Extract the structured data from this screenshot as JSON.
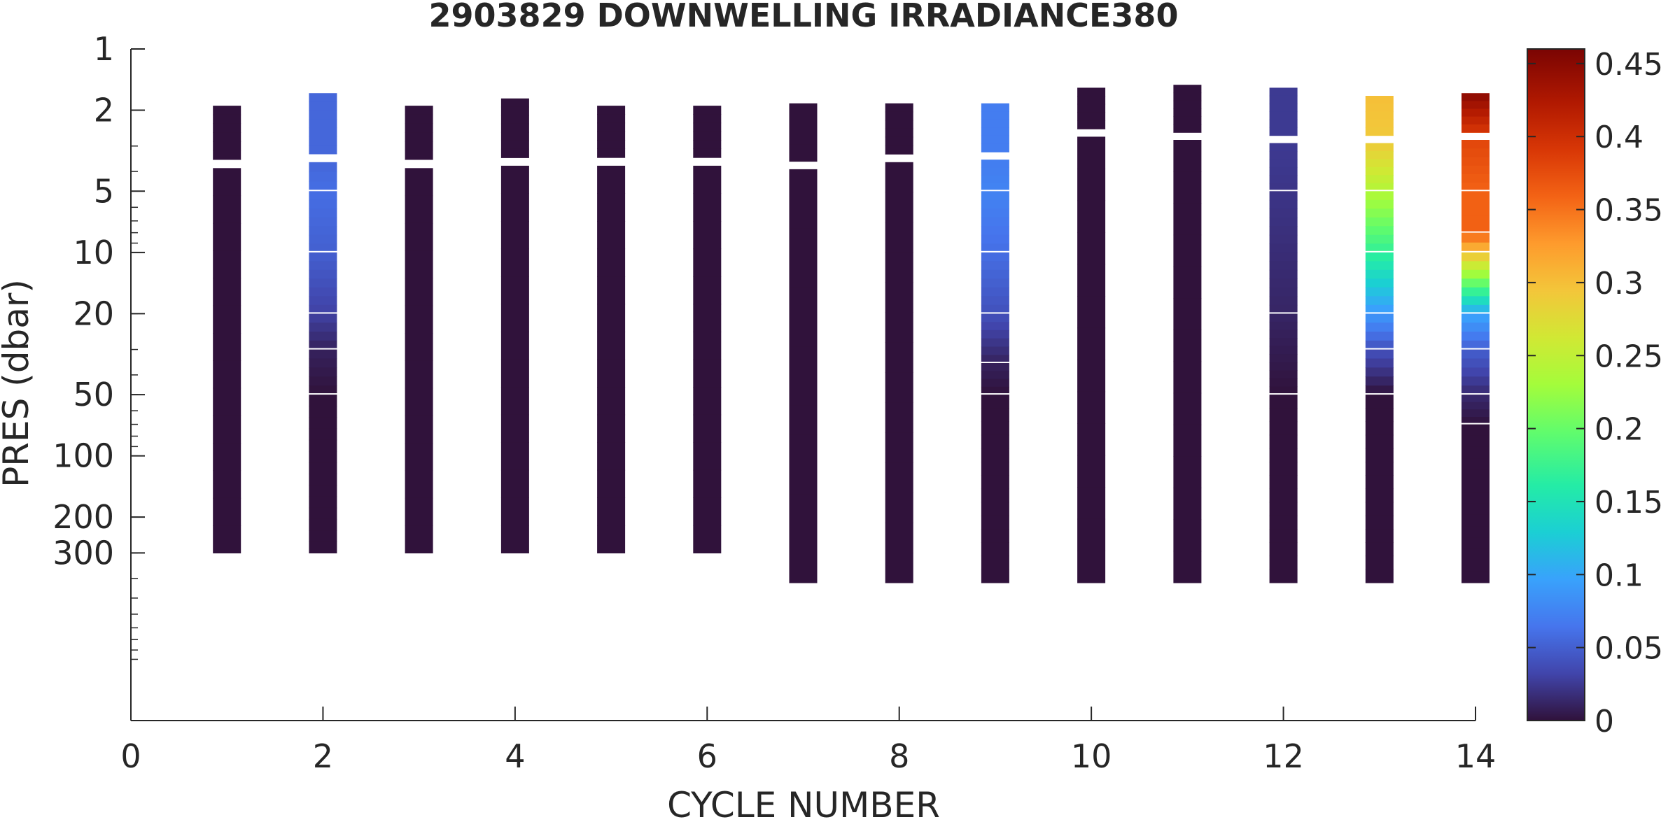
{
  "chart_data": {
    "type": "heatmap",
    "title": "2903829  DOWNWELLING IRRADIANCE380",
    "xlabel": "CYCLE NUMBER",
    "ylabel": "PRES (dbar)",
    "xlim": [
      0,
      14
    ],
    "ylim": [
      1,
      2000
    ],
    "yscale": "log",
    "y_reversed": true,
    "x_ticks": [
      "0",
      "2",
      "4",
      "6",
      "8",
      "10",
      "12",
      "14"
    ],
    "y_ticks": [
      {
        "value": 1,
        "label": "1"
      },
      {
        "value": 2,
        "label": "2"
      },
      {
        "value": 5,
        "label": "5"
      },
      {
        "value": 10,
        "label": "10"
      },
      {
        "value": 20,
        "label": "20"
      },
      {
        "value": 50,
        "label": "50"
      },
      {
        "value": 100,
        "label": "100"
      },
      {
        "value": 200,
        "label": "200"
      },
      {
        "value": 300,
        "label": "300"
      }
    ],
    "colorbar": {
      "range": [
        0,
        0.46
      ],
      "ticks": [
        "0",
        "0.05",
        "0.1",
        "0.15",
        "0.2",
        "0.25",
        "0.3",
        "0.35",
        "0.4",
        "0.45"
      ],
      "colormap": "turbo"
    },
    "cycles": [
      {
        "cycle": 1,
        "profile": [
          [
            1.9,
            0
          ],
          [
            3.85,
            0
          ],
          [
            300,
            0
          ]
        ]
      },
      {
        "cycle": 2,
        "profile": [
          [
            1.65,
            0.055
          ],
          [
            3.6,
            0.055
          ],
          [
            5,
            0.06
          ],
          [
            10,
            0.05
          ],
          [
            20,
            0.03
          ],
          [
            30,
            0.01
          ],
          [
            50,
            0
          ],
          [
            300,
            0
          ]
        ]
      },
      {
        "cycle": 3,
        "profile": [
          [
            1.9,
            0
          ],
          [
            3.85,
            0
          ],
          [
            300,
            0
          ]
        ]
      },
      {
        "cycle": 4,
        "profile": [
          [
            1.75,
            0
          ],
          [
            3.75,
            0
          ],
          [
            300,
            0
          ]
        ]
      },
      {
        "cycle": 5,
        "profile": [
          [
            1.9,
            0
          ],
          [
            3.75,
            0
          ],
          [
            300,
            0
          ]
        ]
      },
      {
        "cycle": 6,
        "profile": [
          [
            1.9,
            0
          ],
          [
            3.75,
            0
          ],
          [
            300,
            0
          ]
        ]
      },
      {
        "cycle": 7,
        "profile": [
          [
            1.85,
            0
          ],
          [
            3.9,
            0
          ],
          [
            420,
            0
          ]
        ]
      },
      {
        "cycle": 8,
        "profile": [
          [
            1.85,
            0
          ],
          [
            3.6,
            0
          ],
          [
            420,
            0
          ]
        ]
      },
      {
        "cycle": 9,
        "profile": [
          [
            1.85,
            0.07
          ],
          [
            3.5,
            0.07
          ],
          [
            5,
            0.075
          ],
          [
            10,
            0.06
          ],
          [
            20,
            0.04
          ],
          [
            35,
            0.01
          ],
          [
            50,
            0
          ],
          [
            420,
            0
          ]
        ]
      },
      {
        "cycle": 10,
        "profile": [
          [
            1.55,
            0
          ],
          [
            2.7,
            0
          ],
          [
            420,
            0
          ]
        ]
      },
      {
        "cycle": 11,
        "profile": [
          [
            1.5,
            0
          ],
          [
            2.8,
            0
          ],
          [
            420,
            0
          ]
        ]
      },
      {
        "cycle": 12,
        "profile": [
          [
            1.55,
            0.025
          ],
          [
            2.9,
            0.025
          ],
          [
            5,
            0.022
          ],
          [
            20,
            0.012
          ],
          [
            50,
            0
          ],
          [
            420,
            0
          ]
        ]
      },
      {
        "cycle": 13,
        "profile": [
          [
            1.7,
            0.3
          ],
          [
            2.9,
            0.29
          ],
          [
            5,
            0.24
          ],
          [
            10,
            0.17
          ],
          [
            20,
            0.09
          ],
          [
            30,
            0.04
          ],
          [
            50,
            0
          ],
          [
            420,
            0
          ]
        ]
      },
      {
        "cycle": 14,
        "profile": [
          [
            1.65,
            0.45
          ],
          [
            2.8,
            0.38
          ],
          [
            5,
            0.36
          ],
          [
            8,
            0.36
          ],
          [
            10,
            0.3
          ],
          [
            20,
            0.1
          ],
          [
            30,
            0.05
          ],
          [
            50,
            0.015
          ],
          [
            70,
            0
          ],
          [
            420,
            0
          ]
        ]
      }
    ]
  }
}
